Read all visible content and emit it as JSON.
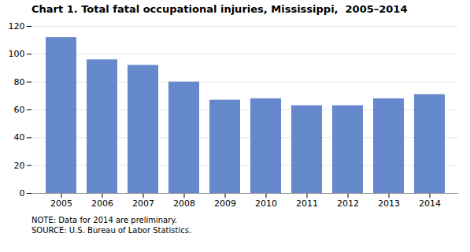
{
  "chart_data": {
    "type": "bar",
    "title": "Chart 1. Total fatal occupational injuries, Mississippi,  2005–2014",
    "categories": [
      "2005",
      "2006",
      "2007",
      "2008",
      "2009",
      "2010",
      "2011",
      "2012",
      "2013",
      "2014"
    ],
    "values": [
      112,
      96,
      92,
      80,
      67,
      68,
      63,
      63,
      68,
      71
    ],
    "color": "#6688CC",
    "ylim": [
      0,
      120
    ],
    "yticks": [
      0,
      20,
      40,
      60,
      80,
      100,
      120
    ],
    "grid": true,
    "notes": [
      "NOTE: Data for 2014 are preliminary.",
      "SOURCE: U.S. Bureau of Labor Statistics."
    ]
  }
}
